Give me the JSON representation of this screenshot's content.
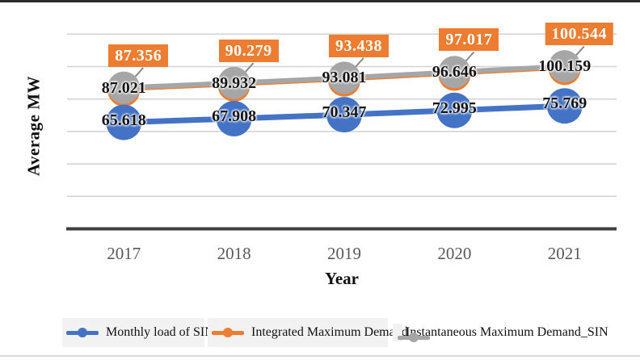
{
  "figure": {
    "y_axis_title": "Average MW",
    "x_axis_title": "Year"
  },
  "chart_data": {
    "type": "line",
    "title": "",
    "xlabel": "Year",
    "ylabel": "Average MW",
    "categories": [
      "2017",
      "2018",
      "2019",
      "2020",
      "2021"
    ],
    "series": [
      {
        "name": "Monthly load of SIN",
        "color": "#4472C4",
        "values": [
          65.618,
          67.908,
          70.347,
          72.995,
          75.769
        ],
        "label_style": "plain"
      },
      {
        "name": "Integrated Maximum Demand",
        "color": "#ED7D31",
        "values": [
          87.356,
          90.279,
          93.438,
          97.017,
          100.544
        ],
        "label_style": "boxed",
        "label_text_color": "#ffffff"
      },
      {
        "name": "Instantaneous Maximum Demand_SIN",
        "color": "#A6A6A6",
        "values": [
          87.021,
          89.932,
          93.081,
          96.646,
          100.159
        ],
        "label_style": "plain"
      }
    ],
    "label_decimals": 3,
    "ylim": [
      0,
      140
    ],
    "gridline_values": [
      20,
      40,
      60,
      80,
      100,
      120
    ],
    "grid": true,
    "y_tick_labels_visible": false,
    "legend_position": "bottom",
    "colors": {
      "gridline": "#d2d2d2",
      "axis_line": "#3f3f3f",
      "leader_line": "#8a8a8a",
      "tick_label": "#595959"
    }
  }
}
